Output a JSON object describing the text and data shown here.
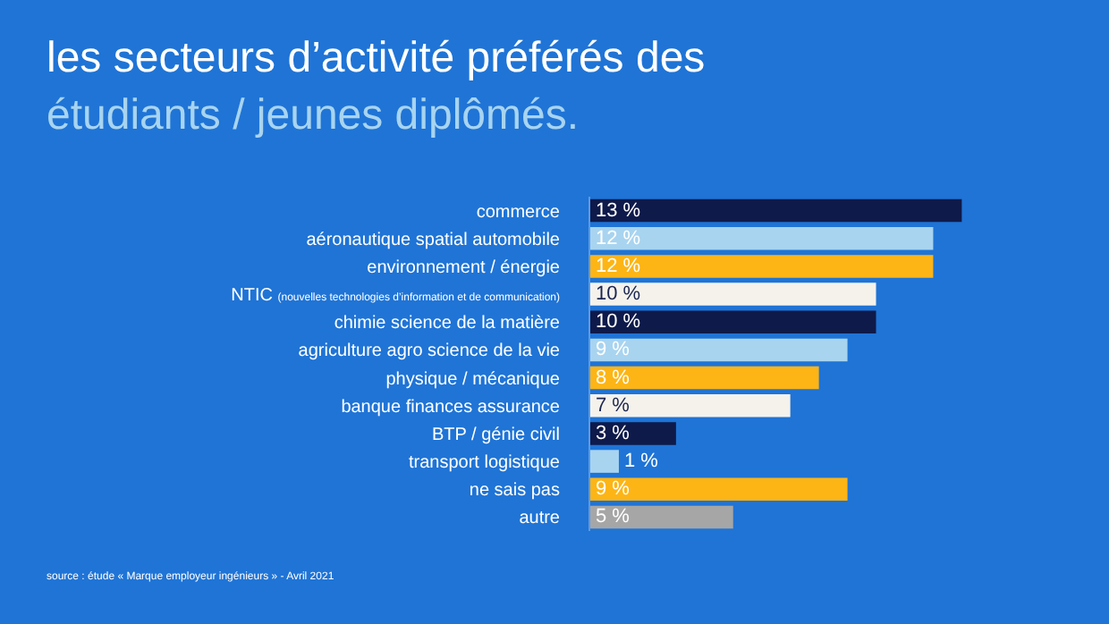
{
  "chart_data": {
    "type": "bar",
    "orientation": "horizontal",
    "tick_labels": "y",
    "title": "les secteurs d’activité préférés des",
    "subtitle": "étudiants / jeunes diplômés.",
    "categories": [
      "commerce",
      "aéronautique spatial automobile",
      "environnement / énergie",
      "NTIC (nouvelles technologies d’information et de communication)",
      "chimie science de la matière",
      "agriculture agro science de la vie",
      "physique / mécanique",
      "banque finances assurance",
      "BTP / génie civil",
      "transport logistique",
      "ne sais pas",
      "autre"
    ],
    "values": [
      13,
      12,
      12,
      10,
      10,
      9,
      8,
      7,
      3,
      1,
      9,
      5
    ],
    "value_labels": [
      "13 %",
      "12 %",
      "12 %",
      "10 %",
      "10 %",
      "9 %",
      "8 %",
      "7 %",
      "3 %",
      "1 %",
      "9 %",
      "5 %"
    ],
    "colors": [
      "#0e1a4a",
      "#a8d4f0",
      "#fdb515",
      "#f5f2ec",
      "#0e1a4a",
      "#a8d4f0",
      "#fdb515",
      "#f5f2ec",
      "#0e1a4a",
      "#a8d4f0",
      "#fdb515",
      "#a6a6a6"
    ],
    "annotations": [
      "source : étude « Marque employeur ingénieurs » - Avril 2021"
    ],
    "grid": false,
    "legend": false
  }
}
